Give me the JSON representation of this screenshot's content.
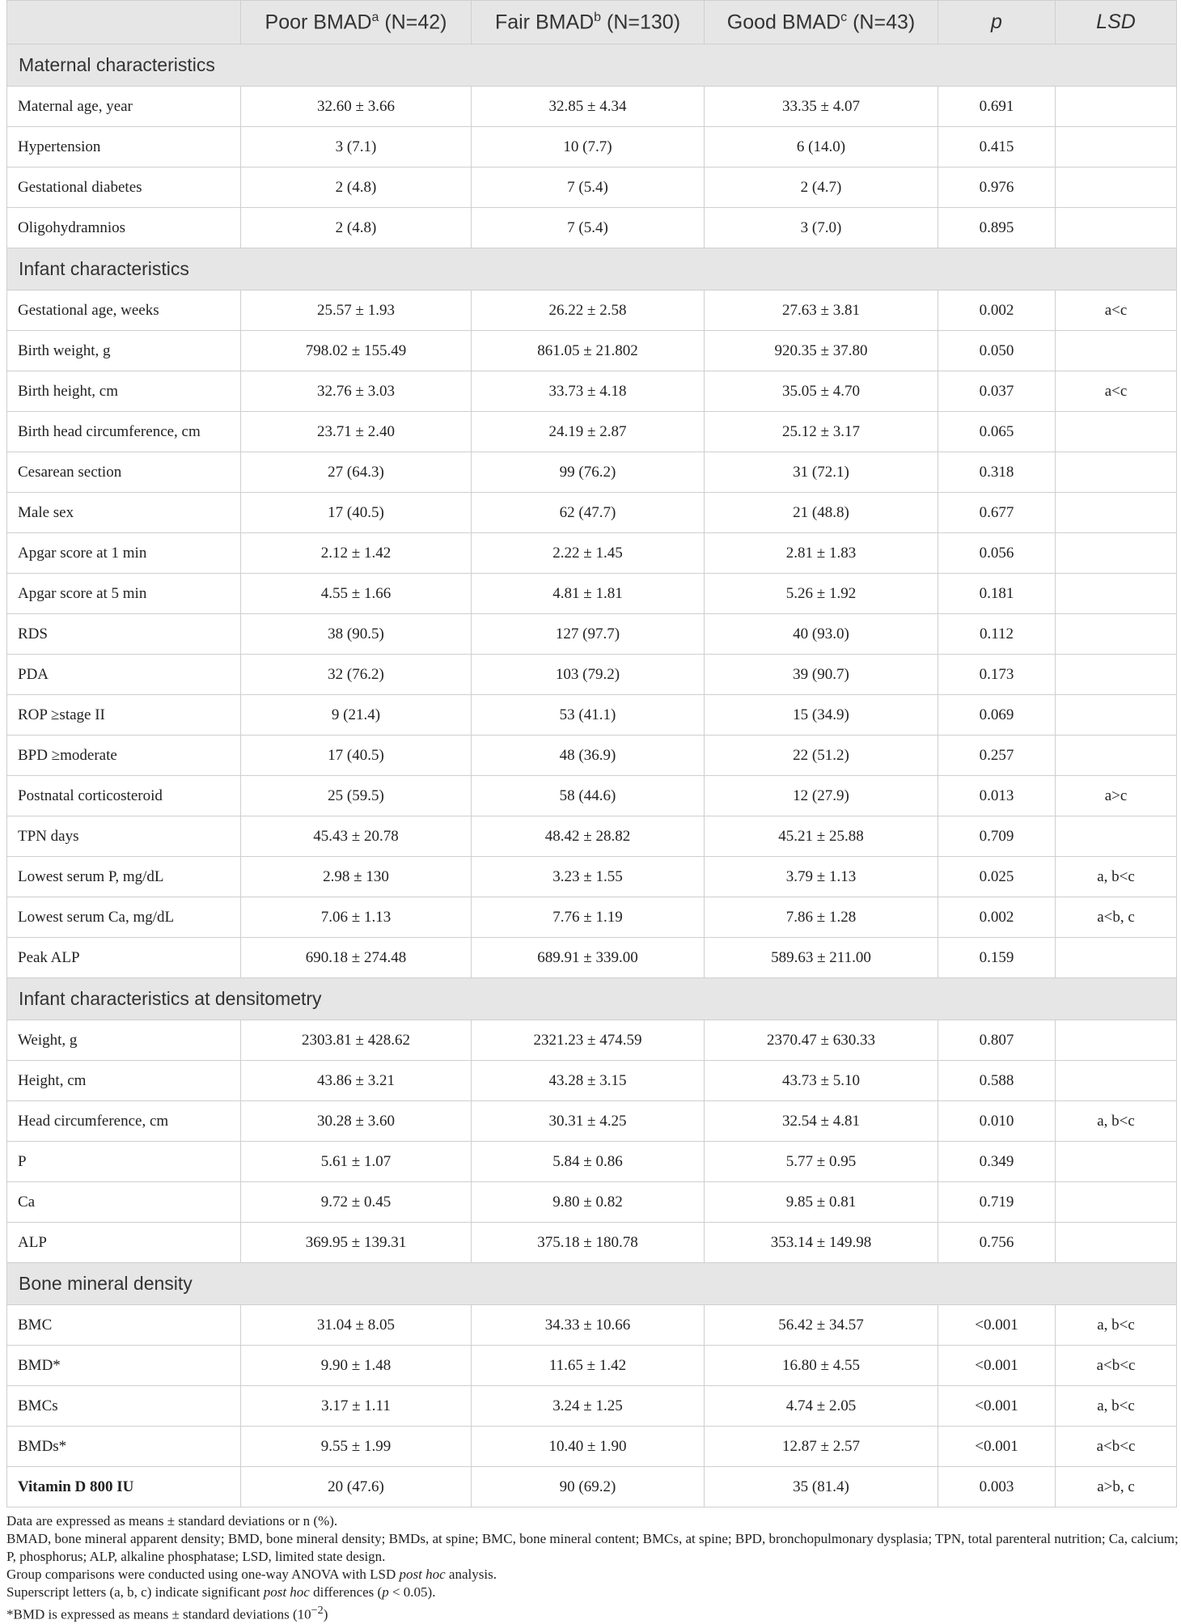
{
  "header": {
    "col0": "",
    "col1_pre": "Poor BMAD",
    "col1_sup": "a",
    "col1_post": " (N=42)",
    "col2_pre": "Fair BMAD",
    "col2_sup": "b",
    "col2_post": " (N=130)",
    "col3_pre": "Good BMAD",
    "col3_sup": "c",
    "col3_post": " (N=43)",
    "col4": "p",
    "col5": "LSD"
  },
  "sections": [
    {
      "title": "Maternal characteristics",
      "rows": [
        [
          "Maternal age, year",
          "32.60 ± 3.66",
          "32.85 ± 4.34",
          "33.35 ± 4.07",
          "0.691",
          ""
        ],
        [
          "Hypertension",
          "3 (7.1)",
          "10 (7.7)",
          "6 (14.0)",
          "0.415",
          ""
        ],
        [
          "Gestational diabetes",
          "2 (4.8)",
          "7 (5.4)",
          "2 (4.7)",
          "0.976",
          ""
        ],
        [
          "Oligohydramnios",
          "2 (4.8)",
          "7 (5.4)",
          "3 (7.0)",
          "0.895",
          ""
        ]
      ]
    },
    {
      "title": "Infant characteristics",
      "rows": [
        [
          "Gestational age, weeks",
          "25.57 ± 1.93",
          "26.22 ± 2.58",
          "27.63 ± 3.81",
          "0.002",
          "a<c"
        ],
        [
          "Birth weight, g",
          "798.02 ± 155.49",
          "861.05 ± 21.802",
          "920.35 ± 37.80",
          "0.050",
          ""
        ],
        [
          "Birth height, cm",
          "32.76 ± 3.03",
          "33.73 ± 4.18",
          "35.05 ± 4.70",
          "0.037",
          "a<c"
        ],
        [
          "Birth head circumference, cm",
          "23.71 ± 2.40",
          "24.19 ± 2.87",
          "25.12 ± 3.17",
          "0.065",
          ""
        ],
        [
          "Cesarean section",
          "27 (64.3)",
          "99 (76.2)",
          "31 (72.1)",
          "0.318",
          ""
        ],
        [
          "Male sex",
          "17 (40.5)",
          "62 (47.7)",
          "21 (48.8)",
          "0.677",
          ""
        ],
        [
          "Apgar score at 1 min",
          "2.12 ± 1.42",
          "2.22 ± 1.45",
          "2.81 ± 1.83",
          "0.056",
          ""
        ],
        [
          "Apgar score at 5 min",
          "4.55 ± 1.66",
          "4.81 ± 1.81",
          "5.26 ± 1.92",
          "0.181",
          ""
        ],
        [
          "RDS",
          "38 (90.5)",
          "127 (97.7)",
          "40 (93.0)",
          "0.112",
          ""
        ],
        [
          "PDA",
          "32 (76.2)",
          "103 (79.2)",
          "39 (90.7)",
          "0.173",
          ""
        ],
        [
          "ROP ≥stage II",
          "9 (21.4)",
          "53 (41.1)",
          "15 (34.9)",
          "0.069",
          ""
        ],
        [
          "BPD ≥moderate",
          "17 (40.5)",
          "48 (36.9)",
          "22 (51.2)",
          "0.257",
          ""
        ],
        [
          "Postnatal corticosteroid",
          "25 (59.5)",
          "58 (44.6)",
          "12 (27.9)",
          "0.013",
          "a>c"
        ],
        [
          "TPN days",
          "45.43 ± 20.78",
          "48.42 ± 28.82",
          "45.21 ± 25.88",
          "0.709",
          ""
        ],
        [
          "Lowest serum P, mg/dL",
          "2.98 ± 130",
          "3.23 ± 1.55",
          "3.79 ± 1.13",
          "0.025",
          "a, b<c"
        ],
        [
          "Lowest serum Ca, mg/dL",
          "7.06 ± 1.13",
          "7.76 ± 1.19",
          "7.86 ± 1.28",
          "0.002",
          "a<b, c"
        ],
        [
          "Peak ALP",
          "690.18 ± 274.48",
          "689.91 ± 339.00",
          "589.63 ± 211.00",
          "0.159",
          ""
        ]
      ]
    },
    {
      "title": "Infant characteristics at densitometry",
      "rows": [
        [
          "Weight, g",
          "2303.81 ± 428.62",
          "2321.23 ± 474.59",
          "2370.47 ± 630.33",
          "0.807",
          ""
        ],
        [
          "Height, cm",
          "43.86 ± 3.21",
          "43.28 ± 3.15",
          "43.73 ± 5.10",
          "0.588",
          ""
        ],
        [
          "Head circumference, cm",
          "30.28 ± 3.60",
          "30.31 ± 4.25",
          "32.54 ± 4.81",
          "0.010",
          "a, b<c"
        ],
        [
          "P",
          "5.61 ± 1.07",
          "5.84 ± 0.86",
          "5.77 ± 0.95",
          "0.349",
          ""
        ],
        [
          "Ca",
          "9.72 ± 0.45",
          "9.80 ± 0.82",
          "9.85 ± 0.81",
          "0.719",
          ""
        ],
        [
          "ALP",
          "369.95 ± 139.31",
          "375.18 ± 180.78",
          "353.14 ± 149.98",
          "0.756",
          ""
        ]
      ]
    },
    {
      "title": "Bone mineral density",
      "rows": [
        [
          "BMC",
          "31.04 ± 8.05",
          "34.33 ± 10.66",
          "56.42 ± 34.57",
          "<0.001",
          "a, b<c"
        ],
        [
          "BMD*",
          "9.90 ± 1.48",
          "11.65 ± 1.42",
          "16.80 ± 4.55",
          "<0.001",
          "a<b<c"
        ],
        [
          "BMCs",
          "3.17 ± 1.11",
          "3.24 ± 1.25",
          "4.74 ± 2.05",
          "<0.001",
          "a, b<c"
        ],
        [
          "BMDs*",
          "9.55 ± 1.99",
          "10.40 ± 1.90",
          "12.87 ± 2.57",
          "<0.001",
          "a<b<c"
        ],
        [
          "Vitamin D 800 IU",
          "20 (47.6)",
          "90 (69.2)",
          "35 (81.4)",
          "0.003",
          "a>b, c"
        ]
      ]
    }
  ],
  "bold_labels": [
    "Vitamin D 800 IU"
  ],
  "notes": {
    "line1": "Data are expressed as means ± standard deviations or n (%).",
    "line2": "BMAD, bone mineral apparent density; BMD, bone mineral density; BMDs, at spine; BMC, bone mineral content; BMCs, at spine; BPD, bronchopulmonary dysplasia; TPN, total parenteral nutrition; Ca, calcium; P, phosphorus; ALP, alkaline phosphatase; LSD, limited state design.",
    "line3_pre": "Group comparisons were conducted using one-way ANOVA with LSD ",
    "line3_it": "post hoc",
    "line3_post": " analysis.",
    "line4_pre": "Superscript letters (a, b, c) indicate significant ",
    "line4_it": "post hoc",
    "line4_mid": " differences (",
    "line4_it2": "p",
    "line4_post": " < 0.05).",
    "line5_pre": "*BMD is expressed as means ± standard deviations (10",
    "line5_sup": "−2",
    "line5_post": ")"
  }
}
